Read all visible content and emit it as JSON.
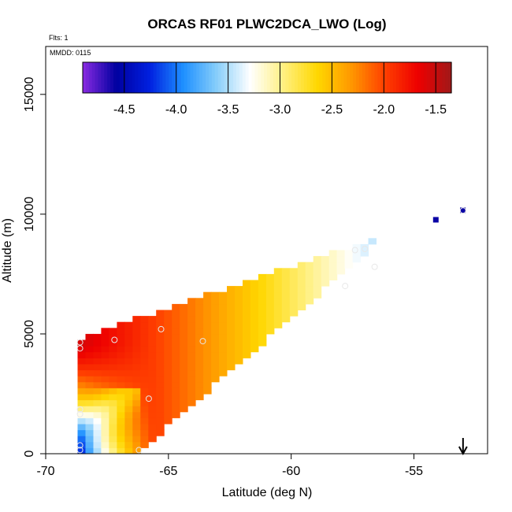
{
  "chart_data": {
    "type": "heatmap",
    "title": "ORCAS RF01 PLWC2DCA_LWO (Log)",
    "xlabel": "Latitude (deg N)",
    "ylabel": "Altitude (m)",
    "flights_label": "Flts: 1",
    "date_label": "MMDD: 0115",
    "xlim": [
      -70,
      -52
    ],
    "ylim": [
      0,
      17000
    ],
    "x_ticks": [
      -70,
      -65,
      -60,
      -55
    ],
    "x_tick_labels": [
      "-70",
      "-65",
      "-60",
      "-55"
    ],
    "y_ticks": [
      0,
      5000,
      10000,
      15000
    ],
    "y_tick_labels": [
      "0",
      "5000",
      "10000",
      "15000"
    ],
    "colorbar": {
      "min": -4.9,
      "max": -1.35,
      "ticks": [
        -4.5,
        -4.0,
        -3.5,
        -3.0,
        -2.5,
        -2.0,
        -1.5
      ],
      "tick_labels": [
        "-4.5",
        "-4.0",
        "-3.5",
        "-3.0",
        "-2.5",
        "-2.0",
        "-1.5"
      ],
      "colors": [
        "#8a2be2",
        "#0000a0",
        "#0020e0",
        "#1e90ff",
        "#87cefa",
        "#ffffff",
        "#fff080",
        "#ffd700",
        "#ff9900",
        "#ff4000",
        "#ee0000",
        "#a01818"
      ]
    },
    "domain": {
      "lat_start": -68.7,
      "lat_end": -53.0,
      "top_at_start": 4750,
      "top_at_end": 10150
    },
    "samples": [
      {
        "lat": -68.6,
        "alt": 4650
      },
      {
        "lat": -68.6,
        "alt": 4400
      },
      {
        "lat": -68.6,
        "alt": 1850
      },
      {
        "lat": -68.6,
        "alt": 1650
      },
      {
        "lat": -68.6,
        "alt": 350
      },
      {
        "lat": -68.6,
        "alt": 150
      },
      {
        "lat": -67.2,
        "alt": 4750
      },
      {
        "lat": -66.2,
        "alt": 150
      },
      {
        "lat": -65.8,
        "alt": 2300
      },
      {
        "lat": -65.3,
        "alt": 5200
      },
      {
        "lat": -63.6,
        "alt": 4700
      },
      {
        "lat": -57.8,
        "alt": 7000
      },
      {
        "lat": -57.4,
        "alt": 8500
      },
      {
        "lat": -57.0,
        "alt": 8550
      },
      {
        "lat": -56.6,
        "alt": 7800
      },
      {
        "lat": -53.0,
        "alt": 10150
      }
    ],
    "marker_arrow_lat": -53.0
  }
}
